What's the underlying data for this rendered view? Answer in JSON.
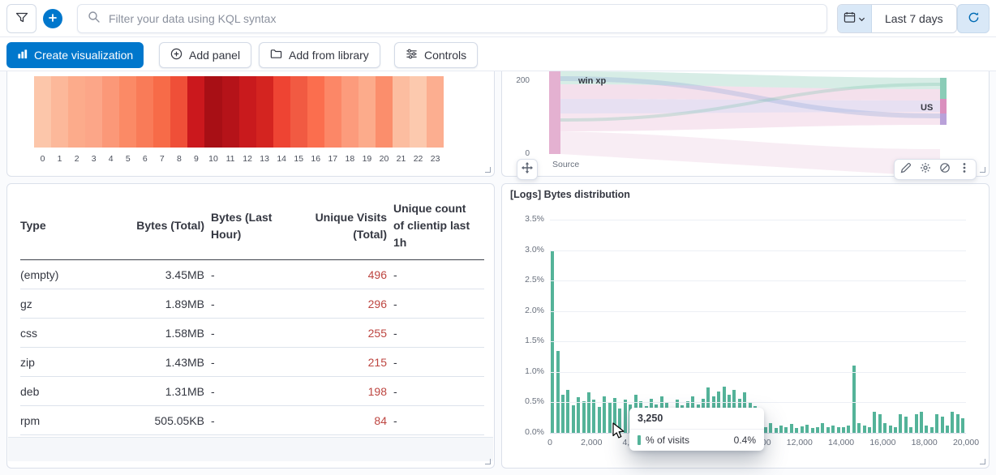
{
  "topbar": {
    "search_placeholder": "Filter your data using KQL syntax",
    "time_range_label": "Last 7 days"
  },
  "toolbar": {
    "create_visualization_label": "Create visualization",
    "add_panel_label": "Add panel",
    "add_from_library_label": "Add from library",
    "controls_label": "Controls"
  },
  "colors": {
    "accent_blue": "#0077cc",
    "bar_green": "#54b399",
    "value_red": "#bd4540",
    "light_blue_button": "#d9e8f7"
  },
  "icons": {
    "filter": "funnel glyph",
    "add_filter": "plus in blue circle",
    "search": "magnifier",
    "calendar": "calendar with chevron-down",
    "refresh": "circular arrow",
    "lens": "mini bar chart",
    "add_panel": "plus in circle",
    "library": "folder",
    "controls": "sliders",
    "drag": "four-way move arrows",
    "edit": "pencil",
    "settings": "gear",
    "inspect": "circle with slash",
    "more": "vertical kebab dots"
  },
  "heatmap_panel": {
    "chart_data": {
      "type": "heatmap",
      "x_labels": [
        "0",
        "1",
        "2",
        "3",
        "4",
        "5",
        "6",
        "7",
        "8",
        "9",
        "10",
        "11",
        "12",
        "13",
        "14",
        "15",
        "16",
        "17",
        "18",
        "19",
        "20",
        "21",
        "22",
        "23"
      ],
      "cell_colors": [
        "#fcc6aa",
        "#fcb89a",
        "#fcab8b",
        "#fca688",
        "#fb9878",
        "#fb8a66",
        "#f97b58",
        "#f76b48",
        "#ef4f38",
        "#cb181d",
        "#a80f15",
        "#b51319",
        "#c91a1d",
        "#d42420",
        "#ee4433",
        "#f15a42",
        "#fb6e4e",
        "#fc8767",
        "#fc9b7c",
        "#fcab8b",
        "#fb8e6c",
        "#fcbda0",
        "#fcc9ae",
        "#fcae90"
      ]
    }
  },
  "sankey_panel": {
    "y_axis_top": "200",
    "y_axis_bottom": "0",
    "node_label_top": "win xp",
    "node_label_right": "US",
    "x_axis_label": "Source"
  },
  "table_panel": {
    "columns": [
      "Type",
      "Bytes (Total)",
      "Bytes (Last Hour)",
      "Unique Visits (Total)",
      "Unique count of clientip last 1h"
    ],
    "rows": [
      [
        "(empty)",
        "3.45MB",
        "-",
        "496",
        "-"
      ],
      [
        "gz",
        "1.89MB",
        "-",
        "296",
        "-"
      ],
      [
        "css",
        "1.58MB",
        "-",
        "255",
        "-"
      ],
      [
        "zip",
        "1.43MB",
        "-",
        "215",
        "-"
      ],
      [
        "deb",
        "1.31MB",
        "-",
        "198",
        "-"
      ],
      [
        "rpm",
        "505.05KB",
        "-",
        "84",
        "-"
      ]
    ]
  },
  "histogram_panel": {
    "title": "[Logs] Bytes distribution",
    "chart_data": {
      "type": "bar",
      "xlabel": "",
      "ylabel": "% of visits",
      "xlim": [
        0,
        20000
      ],
      "ylim": [
        0,
        3.5
      ],
      "bin_start": 0,
      "bin_width": 250,
      "y_ticks": [
        "3.5%",
        "3.0%",
        "2.5%",
        "2.0%",
        "1.5%",
        "1.0%",
        "0.5%",
        "0.0%"
      ],
      "x_ticks": [
        "0",
        "2,000",
        "4,000",
        "6,000",
        "8,000",
        "10,000",
        "12,000",
        "14,000",
        "16,000",
        "18,000",
        "20,000"
      ],
      "values_percent": [
        3.0,
        1.35,
        0.62,
        0.71,
        0.45,
        0.58,
        0.52,
        0.66,
        0.55,
        0.42,
        0.6,
        0.5,
        0.57,
        0.4,
        0.55,
        0.47,
        0.62,
        0.52,
        0.44,
        0.56,
        0.46,
        0.6,
        0.5,
        0.38,
        0.55,
        0.45,
        0.52,
        0.6,
        0.47,
        0.56,
        0.74,
        0.6,
        0.68,
        0.76,
        0.62,
        0.7,
        0.56,
        0.66,
        0.5,
        0.44,
        0.14,
        0.1,
        0.16,
        0.08,
        0.12,
        0.1,
        0.15,
        0.08,
        0.11,
        0.13,
        0.08,
        0.1,
        0.16,
        0.1,
        0.12,
        0.09,
        0.1,
        0.12,
        1.1,
        0.16,
        0.12,
        0.1,
        0.34,
        0.3,
        0.16,
        0.12,
        0.1,
        0.3,
        0.26,
        0.1,
        0.3,
        0.34,
        0.12,
        0.1,
        0.3,
        0.26,
        0.12,
        0.34,
        0.3,
        0.24
      ]
    },
    "tooltip": {
      "header": "3,250",
      "series_label": "% of visits",
      "value": "0.4%"
    }
  }
}
